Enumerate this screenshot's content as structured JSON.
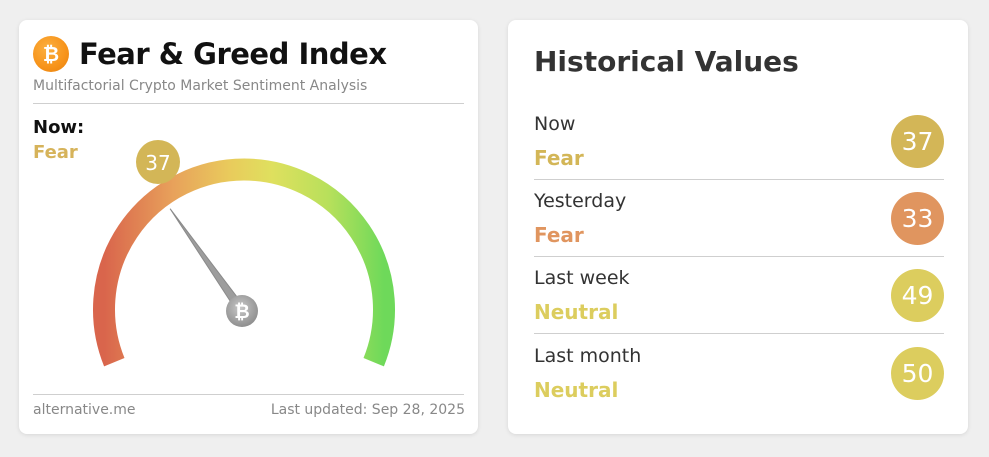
{
  "fear_greed_card": {
    "logo_glyph": "₿",
    "title": "Fear & Greed Index",
    "subtitle": "Multifactorial Crypto Market Sentiment Analysis",
    "now_label": "Now:",
    "now_value": "Fear",
    "gauge_value": "37",
    "gauge_value_number": 37,
    "gauge_range": [
      0,
      100
    ],
    "hub_glyph": "₿",
    "footer_source": "alternative.me",
    "footer_updated": "Last updated: Sep 28, 2025",
    "colors": {
      "fear": "#d6b35a",
      "bubble": "#d3b657",
      "needle": "#9d9d9d"
    }
  },
  "historical": {
    "title": "Historical Values",
    "rows": [
      {
        "label": "Now",
        "status": "Fear",
        "value": "37",
        "color": "#d3b657"
      },
      {
        "label": "Yesterday",
        "status": "Fear",
        "value": "33",
        "color": "#e0955f"
      },
      {
        "label": "Last week",
        "status": "Neutral",
        "value": "49",
        "color": "#dccd5e"
      },
      {
        "label": "Last month",
        "status": "Neutral",
        "value": "50",
        "color": "#dccd5e"
      }
    ]
  }
}
